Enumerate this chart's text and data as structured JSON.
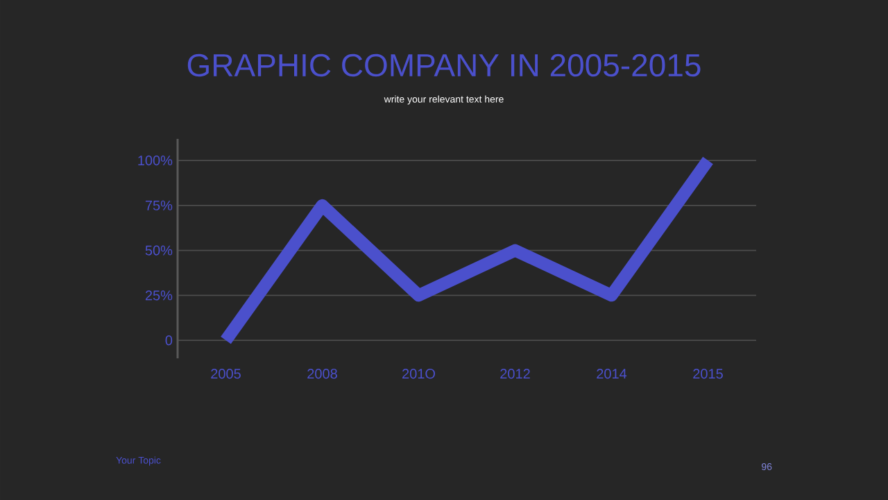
{
  "chart_data": {
    "type": "line",
    "title": "GRAPHIC COMPANY IN 2005-2015",
    "subtitle": "write your relevant text here",
    "categories": [
      "2005",
      "2008",
      "201O",
      "2012",
      "2014",
      "2015"
    ],
    "values": [
      0,
      75,
      25,
      50,
      25,
      100
    ],
    "color": "#4b50cc",
    "ylim": [
      -10,
      112
    ],
    "yticks": [
      0,
      {
        "value": 25,
        "label": "25%"
      },
      {
        "value": 50,
        "label": "50%"
      },
      {
        "value": 75,
        "label": "75%"
      },
      {
        "value": 100,
        "label": "100%"
      }
    ],
    "grid": "y",
    "marker": "none",
    "line_style": "solid",
    "annotations": [
      "Your Topic",
      "96"
    ]
  }
}
